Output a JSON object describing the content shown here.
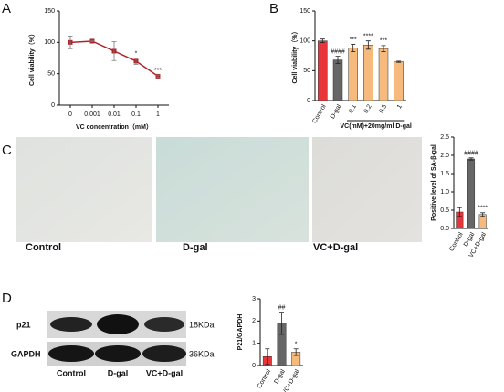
{
  "figure": {
    "panel_labels": [
      "A",
      "B",
      "C",
      "D"
    ],
    "image_labels": [
      "Control",
      "D-gal",
      "VC+D-gal"
    ],
    "blot": {
      "rows": [
        "p21",
        "GAPDH"
      ],
      "sizes": [
        "18KDa",
        "36KDa"
      ],
      "lanes": [
        "Control",
        "D-gal",
        "VC+D-gal"
      ]
    }
  },
  "chart_data": [
    {
      "type": "line",
      "xlabel": "VC concentration（mM）",
      "ylabel": "Cell viability（%）",
      "categories": [
        "0",
        "0.001",
        "0.01",
        "0.1",
        "1"
      ],
      "values": [
        100,
        102,
        86,
        70,
        46
      ],
      "errors": [
        10,
        1,
        15,
        5,
        2
      ],
      "annotations": [
        null,
        null,
        null,
        "*",
        "***"
      ],
      "color": "#b0232a",
      "ylim": [
        0,
        150
      ],
      "yticks": [
        0,
        50,
        100,
        150
      ]
    },
    {
      "type": "bar",
      "ylabel": "Cell viability（%）",
      "group_label": "VC(mM)+20mg/ml D-gal",
      "categories": [
        "Control",
        "D-gal",
        "0.1",
        "0.2",
        "0.5",
        "1"
      ],
      "values": [
        100,
        68,
        88,
        93,
        87,
        65
      ],
      "errors": [
        3,
        6,
        6,
        7,
        5,
        1
      ],
      "annotations": [
        null,
        "####",
        "***",
        "****",
        "***",
        null
      ],
      "colors": [
        "#e8353a",
        "#666666",
        "#f6bb7c",
        "#f6bb7c",
        "#f6bb7c",
        "#f6bb7c"
      ],
      "ylim": [
        0,
        150
      ],
      "yticks": [
        0,
        50,
        100,
        150
      ]
    },
    {
      "type": "bar",
      "ylabel": "Positive level of SA-β-gal",
      "categories": [
        "Control",
        "D-gal",
        "VC+D-gal"
      ],
      "values": [
        0.45,
        1.9,
        0.38
      ],
      "errors": [
        0.12,
        0.03,
        0.05
      ],
      "annotations": [
        null,
        "####",
        "****"
      ],
      "colors": [
        "#e8353a",
        "#666666",
        "#f6bb7c"
      ],
      "ylim": [
        0,
        2.5
      ],
      "yticks": [
        {
          "value": 0,
          "label": "0.0"
        },
        0.5,
        {
          "value": 1,
          "label": "1.0"
        },
        1.5,
        {
          "value": 2,
          "label": "2.0"
        },
        2.5
      ]
    },
    {
      "type": "bar",
      "ylabel": "P21/GAPDH",
      "categories": [
        "Control",
        "D-gal",
        "VC+D-gal"
      ],
      "values": [
        0.4,
        1.9,
        0.6
      ],
      "errors": [
        0.35,
        0.5,
        0.15
      ],
      "annotations": [
        null,
        "##",
        "*"
      ],
      "colors": [
        "#e8353a",
        "#666666",
        "#f6bb7c"
      ],
      "ylim": [
        0,
        3
      ],
      "yticks": [
        0,
        1,
        2,
        3
      ]
    }
  ]
}
